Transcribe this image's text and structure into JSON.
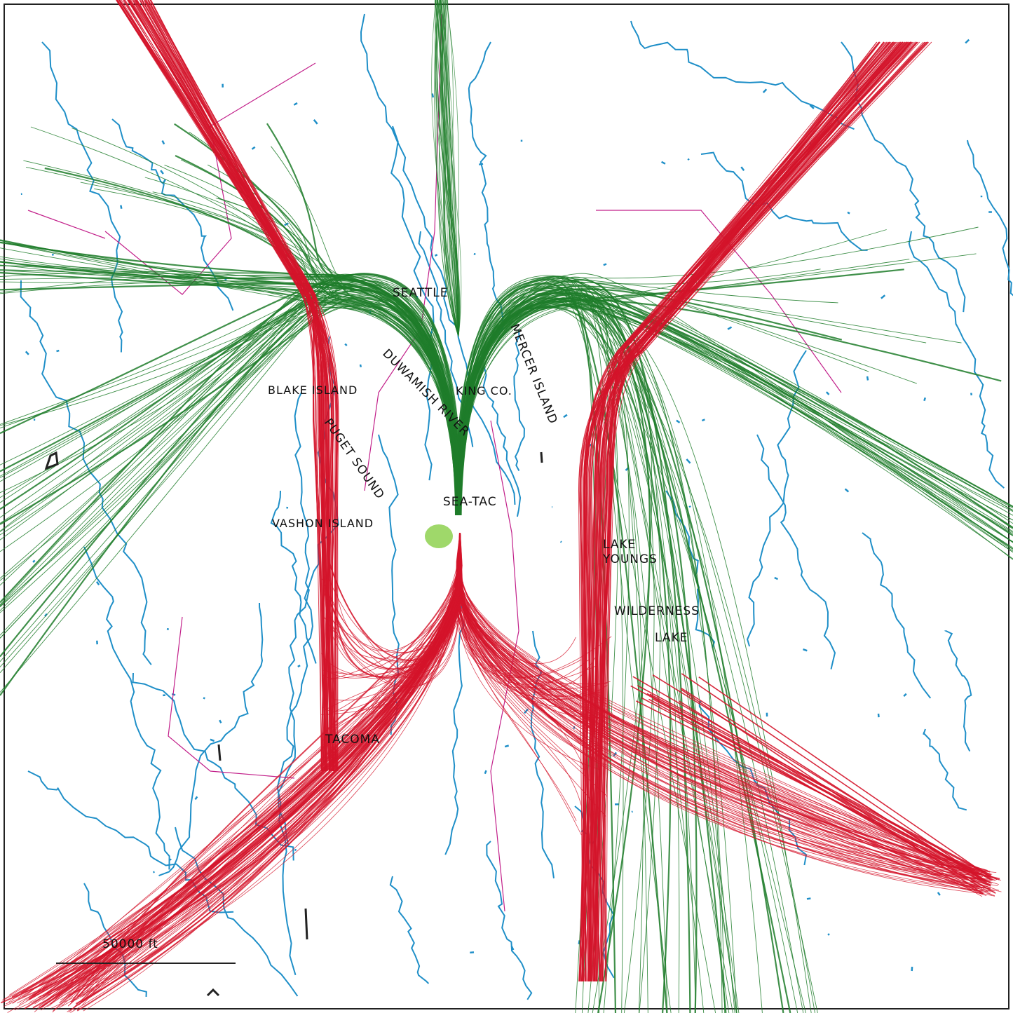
{
  "map": {
    "labels": {
      "seattle": "SEATTLE",
      "mercer_island": "MERCER ISLAND",
      "duwamish_river": "DUWAMISH RIVER",
      "king_co": "KING CO.",
      "blake_island": "BLAKE ISLAND",
      "puget_sound": "PUGET SOUND",
      "sea_tac": "SEA-TAC",
      "vashon_island": "VASHON ISLAND",
      "lake_meridian": "LAKE",
      "lake_youngs": "YOUNGS",
      "wilderness": "WILDERNESS",
      "wilderness_lake": "LAKE",
      "tacoma": "TACOMA"
    },
    "scale_bar_label": "50000 ft",
    "colors": {
      "water": "#1f8fc8",
      "arrivals": "#d4142a",
      "departures": "#1e7d2a",
      "boundaries": "#c2208a",
      "airport_marker": "#9fd86a"
    }
  }
}
